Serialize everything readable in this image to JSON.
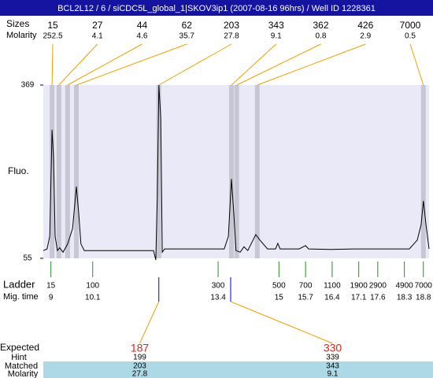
{
  "chart_data": {
    "type": "electropherogram",
    "title": "BCL2L12 / 6 / siCDC5L_global_1|SKOV3ip1 (2007-08-16 96hrs) / Well ID 1228361",
    "size_label": "Sizes",
    "molarity_label": "Molarity",
    "peaks": {
      "sizes": [
        15,
        27,
        44,
        62,
        203,
        343,
        362,
        426,
        7000
      ],
      "molarity": [
        252.5,
        4.1,
        4.6,
        35.7,
        27.8,
        9.1,
        0.8,
        2.9,
        0.5
      ],
      "x": [
        9.03,
        9.21,
        9.44,
        9.67,
        11.84,
        13.75,
        13.89,
        14.43,
        18.8
      ]
    },
    "y_label": "Fluo.",
    "ylim": [
      55,
      369
    ],
    "yticks": [
      55,
      369
    ],
    "xlim": [
      8.8,
      18.95
    ],
    "trace": {
      "color": "#000000",
      "x": [
        8.8,
        8.9,
        8.97,
        9.03,
        9.07,
        9.11,
        9.17,
        9.23,
        9.32,
        9.44,
        9.57,
        9.67,
        9.73,
        9.79,
        9.88,
        10.15,
        10.77,
        11.39,
        11.7,
        11.76,
        11.8,
        11.84,
        11.89,
        11.93,
        11.99,
        12.42,
        13.05,
        13.56,
        13.67,
        13.75,
        13.81,
        13.87,
        13.98,
        14.08,
        14.18,
        14.29,
        14.39,
        14.5,
        14.7,
        14.91,
        14.97,
        15.03,
        15.53,
        15.7,
        15.78,
        16.36,
        16.98,
        17.6,
        18.02,
        18.43,
        18.64,
        18.74,
        18.8,
        18.87,
        18.95
      ],
      "values": [
        69,
        72,
        95,
        288,
        238,
        95,
        69,
        74,
        66,
        81,
        109,
        185,
        138,
        81,
        69,
        69,
        69,
        69,
        69,
        52,
        166,
        369,
        309,
        66,
        72,
        72,
        72,
        72,
        95,
        199,
        138,
        69,
        66,
        76,
        69,
        84,
        98,
        88,
        72,
        72,
        82,
        72,
        72,
        78,
        72,
        71,
        72,
        72,
        72,
        72,
        88,
        116,
        159,
        116,
        72
      ]
    },
    "ladder": {
      "label": "Ladder",
      "time_label": "Mig. time",
      "sizes": [
        15,
        100,
        300,
        500,
        700,
        1100,
        1900,
        2900,
        4900,
        7000
      ],
      "x": [
        9,
        10.1,
        13.4,
        15,
        15.7,
        16.4,
        17.1,
        17.6,
        18.3,
        18.8
      ]
    },
    "expected": {
      "label": "Expected",
      "hint_label": "Hint",
      "matched_label": "Matched",
      "molarity_label": "Molarity",
      "values": [
        187,
        330
      ],
      "x": [
        11.84,
        13.73
      ],
      "hint": [
        199,
        339
      ],
      "matched": [
        203,
        343
      ],
      "molarity": [
        27.8,
        9.1
      ]
    }
  }
}
